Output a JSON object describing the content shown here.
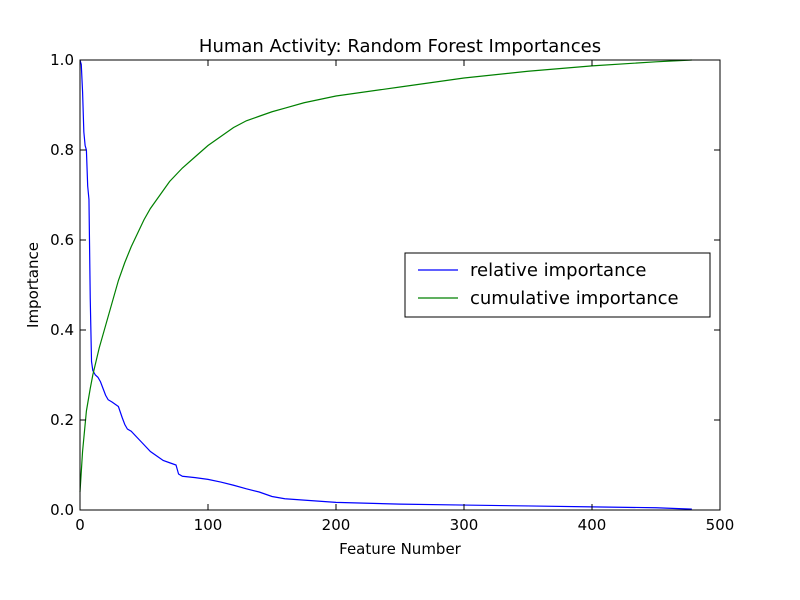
{
  "chart_data": {
    "type": "line",
    "title": "Human Activity: Random Forest Importances",
    "xlabel": "Feature Number",
    "ylabel": "Importance",
    "xlim": [
      0,
      500
    ],
    "ylim": [
      0,
      1.0
    ],
    "xticks": [
      0,
      100,
      200,
      300,
      400,
      500
    ],
    "xtick_labels": [
      "0",
      "100",
      "200",
      "300",
      "400",
      "500"
    ],
    "yticks": [
      0,
      0.2,
      0.4,
      0.6,
      0.8,
      1.0
    ],
    "ytick_labels": [
      "0.0",
      "0.2",
      "0.4",
      "0.6",
      "0.8",
      "1.0"
    ],
    "grid": false,
    "legend_position": "center-right",
    "series": [
      {
        "name": "relative importance",
        "color": "#0000ff",
        "x": [
          0,
          1,
          2,
          3,
          4,
          5,
          6,
          7,
          8,
          9,
          10,
          11,
          12,
          14,
          16,
          18,
          20,
          22,
          25,
          30,
          33,
          35,
          37,
          40,
          45,
          50,
          55,
          60,
          65,
          70,
          75,
          77,
          80,
          90,
          100,
          110,
          120,
          130,
          140,
          150,
          160,
          175,
          200,
          250,
          300,
          350,
          400,
          450,
          478
        ],
        "y": [
          1.0,
          0.99,
          0.93,
          0.84,
          0.81,
          0.8,
          0.72,
          0.69,
          0.47,
          0.33,
          0.31,
          0.305,
          0.3,
          0.295,
          0.285,
          0.27,
          0.255,
          0.245,
          0.24,
          0.23,
          0.205,
          0.19,
          0.18,
          0.175,
          0.16,
          0.145,
          0.13,
          0.12,
          0.11,
          0.105,
          0.1,
          0.08,
          0.075,
          0.072,
          0.068,
          0.062,
          0.055,
          0.047,
          0.04,
          0.03,
          0.025,
          0.022,
          0.017,
          0.013,
          0.011,
          0.009,
          0.007,
          0.005,
          0.002
        ]
      },
      {
        "name": "cumulative importance",
        "color": "#008000",
        "x": [
          0,
          2,
          5,
          8,
          10,
          15,
          20,
          25,
          30,
          35,
          40,
          45,
          50,
          55,
          60,
          65,
          70,
          75,
          80,
          90,
          100,
          110,
          120,
          130,
          140,
          150,
          160,
          175,
          200,
          250,
          300,
          350,
          400,
          450,
          478
        ],
        "y": [
          0.04,
          0.13,
          0.22,
          0.27,
          0.3,
          0.36,
          0.41,
          0.46,
          0.51,
          0.55,
          0.585,
          0.615,
          0.645,
          0.67,
          0.69,
          0.71,
          0.73,
          0.745,
          0.76,
          0.785,
          0.81,
          0.83,
          0.85,
          0.865,
          0.875,
          0.885,
          0.893,
          0.905,
          0.92,
          0.94,
          0.96,
          0.975,
          0.987,
          0.996,
          1.0
        ]
      }
    ]
  }
}
